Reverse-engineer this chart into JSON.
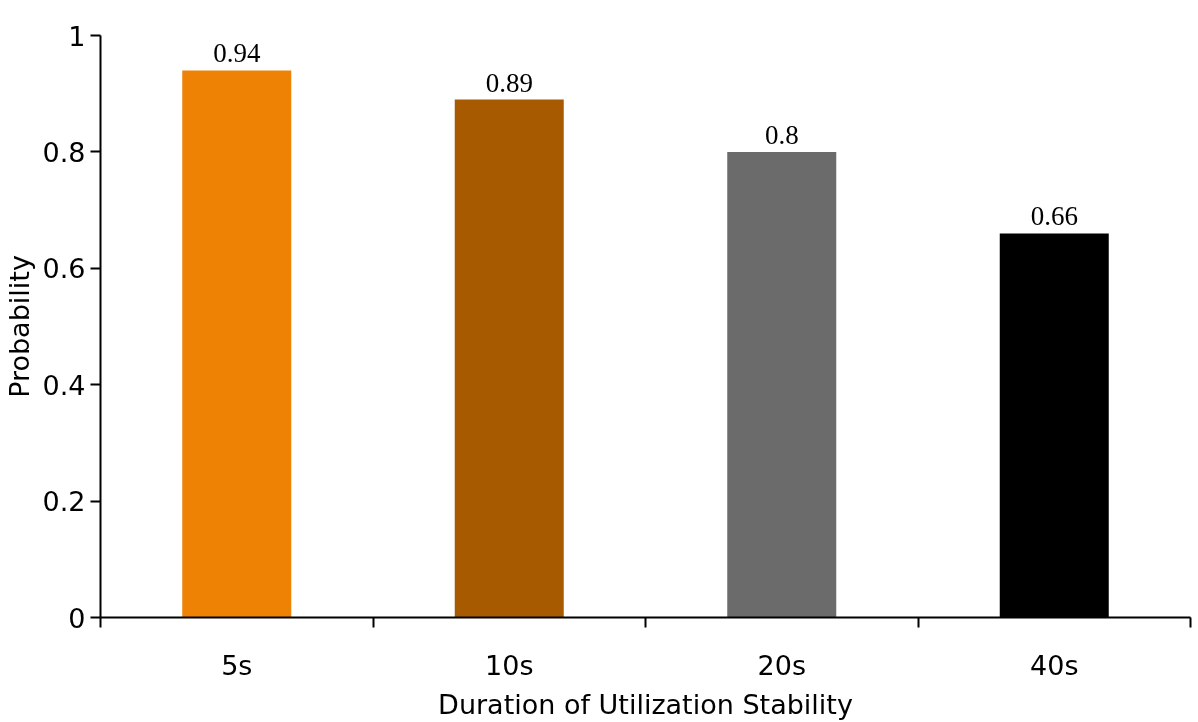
{
  "chart_data": {
    "type": "bar",
    "xlabel": "Duration of Utilization Stability",
    "ylabel": "Probability",
    "categories": [
      "5s",
      "10s",
      "20s",
      "40s"
    ],
    "values": [
      0.94,
      0.89,
      0.8,
      0.66
    ],
    "colors": [
      "#ed8205",
      "#a85a00",
      "#6b6b6b",
      "#000000"
    ],
    "ylim": [
      0,
      1
    ],
    "yticks": [
      0,
      0.2,
      0.4,
      0.6,
      0.8,
      {
        "value": 1,
        "label": "1"
      }
    ],
    "grid": false,
    "data_labels": true
  }
}
